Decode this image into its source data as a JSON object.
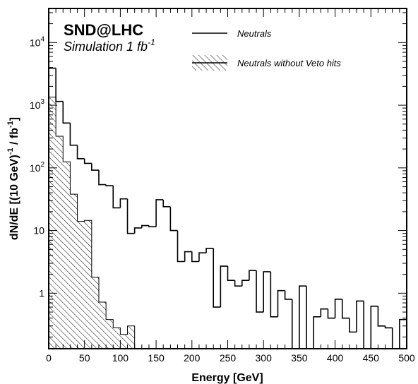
{
  "chart_data": {
    "type": "bar",
    "title": "SND@LHC",
    "subtitle": {
      "prefix": "Simulation 1 fb",
      "superscript": "-1"
    },
    "xlabel": "Energy [GeV]",
    "ylabel": {
      "a": "dN/dE [(10 GeV)",
      "sup1": "-1",
      "b": " / fb",
      "sup2": "-1",
      "c": "]"
    },
    "x_scale": "linear",
    "y_scale": "log",
    "xlim": [
      0,
      500
    ],
    "ylim": [
      0.13,
      35000
    ],
    "bin_width_gev": 10,
    "x_ticks": [
      0,
      50,
      100,
      150,
      200,
      250,
      300,
      350,
      400,
      450,
      500
    ],
    "x_tick_labels": [
      "0",
      "50",
      "100",
      "150",
      "200",
      "250",
      "300",
      "350",
      "400",
      "450",
      "500"
    ],
    "y_ticks": [
      {
        "value": 1,
        "base": "1",
        "exp": ""
      },
      {
        "value": 10,
        "base": "10",
        "exp": ""
      },
      {
        "value": 100,
        "base": "10",
        "exp": "2"
      },
      {
        "value": 1000,
        "base": "10",
        "exp": "3"
      },
      {
        "value": 10000,
        "base": "10",
        "exp": "4"
      }
    ],
    "legend_position": "top-right",
    "series": [
      {
        "name": "Neutrals",
        "style": "line",
        "color": "#000000",
        "bin_edges_start": 0,
        "values": [
          3900,
          1150,
          520,
          230,
          140,
          118,
          92,
          54,
          52,
          23,
          32,
          9,
          11,
          12,
          11.5,
          31,
          24,
          10,
          3.2,
          4.6,
          3.2,
          4.4,
          5.2,
          0.6,
          2.7,
          1.6,
          1.3,
          1.6,
          2.3,
          0.5,
          2.2,
          0.42,
          1.1,
          0.8,
          0.12,
          1.3,
          0.12,
          0.42,
          0.56,
          0.4,
          0.8,
          0.4,
          0.24,
          0.75,
          0.12,
          0.62,
          0.3,
          0.28,
          0.12,
          0.38
        ]
      },
      {
        "name": "Neutrals without Veto hits",
        "style": "hatched",
        "color": "#000000",
        "bin_edges_start": 0,
        "values": [
          1350,
          320,
          125,
          38,
          14,
          14.5,
          1.8,
          0.72,
          0.38,
          0.28,
          0.22,
          0.3
        ]
      }
    ]
  }
}
